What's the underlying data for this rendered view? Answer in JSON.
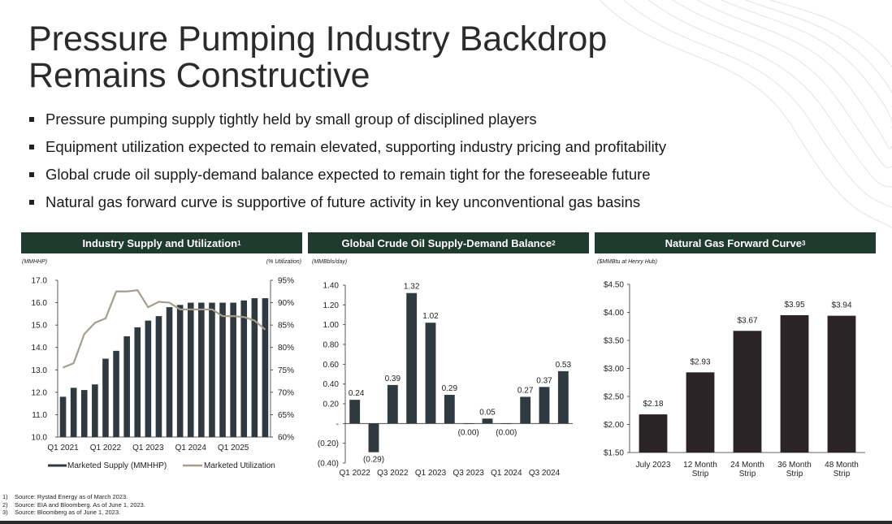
{
  "title": {
    "line1": "Pressure Pumping Industry Backdrop",
    "line2": "Remains Constructive"
  },
  "bullets": [
    "Pressure pumping supply tightly held by small group of disciplined players",
    "Equipment utilization expected to remain elevated, supporting industry pricing and profitability",
    "Global crude oil supply-demand balance expected to remain tight for the foreseeable future",
    "Natural gas forward curve is supportive of future activity in key unconventional gas basins"
  ],
  "panels": {
    "supply": {
      "title": "Industry Supply and Utilization",
      "sup": "1"
    },
    "oil": {
      "title": "Global Crude Oil Supply-Demand Balance",
      "sup": "2"
    },
    "gas": {
      "title": "Natural Gas Forward Curve",
      "sup": "3"
    }
  },
  "footnotes": [
    {
      "n": "1)",
      "text": "Source: Rystad Energy as of March 2023."
    },
    {
      "n": "2)",
      "text": "Source: EIA and Bloomberg.  As of June 1, 2023."
    },
    {
      "n": "3)",
      "text": "Source: Bloomberg as of June 1, 2023."
    }
  ],
  "colors": {
    "header_bg": "#1f3a2e",
    "bar_dark": "#2f3a40",
    "line_gray": "#a59d8e",
    "gas_bar": "#2b2326"
  },
  "chart_data": [
    {
      "type": "bar",
      "title": "Industry Supply and Utilization",
      "ylabel": "(MMHHP)",
      "y2label": "(% Utilization)",
      "ylim": [
        10.0,
        17.0
      ],
      "y2lim": [
        60,
        95
      ],
      "yticks": [
        "10.0",
        "11.0",
        "12.0",
        "13.0",
        "14.0",
        "15.0",
        "16.0",
        "17.0"
      ],
      "y2ticks": [
        "60%",
        "65%",
        "70%",
        "75%",
        "80%",
        "85%",
        "90%",
        "95%"
      ],
      "xticks": [
        "Q1 2021",
        "Q1 2022",
        "Q1 2023",
        "Q1 2024",
        "Q1 2025"
      ],
      "series": [
        {
          "name": "Marketed Supply (MMHHP)",
          "kind": "bar",
          "values": [
            11.8,
            12.2,
            12.1,
            12.35,
            13.5,
            13.85,
            14.5,
            14.9,
            15.2,
            15.4,
            15.8,
            15.9,
            16.0,
            16.0,
            16.0,
            16.0,
            16.0,
            16.1,
            16.2,
            16.2
          ]
        },
        {
          "name": "Marketed Utilization",
          "kind": "line",
          "values": [
            75.5,
            76.5,
            83,
            85.5,
            86.5,
            92.5,
            92.5,
            92.8,
            89,
            90.2,
            90,
            88.5,
            88.5,
            88.5,
            88.5,
            87,
            87,
            86.8,
            86,
            84
          ]
        }
      ]
    },
    {
      "type": "bar",
      "title": "Global Crude Oil Supply-Demand Balance",
      "ylabel": "(MMBbls/day)",
      "ylim": [
        -0.4,
        1.4
      ],
      "yticks": [
        "(0.40)",
        "(0.20)",
        "-",
        "0.20",
        "0.40",
        "0.60",
        "0.80",
        "1.00",
        "1.20",
        "1.40"
      ],
      "xticks": [
        "Q1 2022",
        "Q3 2022",
        "Q1 2023",
        "Q3 2023",
        "Q1 2024",
        "Q3 2024"
      ],
      "values": [
        0.24,
        -0.29,
        0.39,
        1.32,
        1.02,
        0.29,
        -0.005,
        0.05,
        -0.005,
        0.27,
        0.37,
        0.53
      ],
      "labels": [
        "0.24",
        "(0.29)",
        "0.39",
        "1.32",
        "1.02",
        "0.29",
        "(0.00)",
        "0.05",
        "(0.00)",
        "0.27",
        "0.37",
        "0.53"
      ]
    },
    {
      "type": "bar",
      "title": "Natural Gas Forward Curve",
      "ylabel": "($MMBtu at Henry Hub)",
      "ylim": [
        1.5,
        4.5
      ],
      "yticks": [
        "$1.50",
        "$2.00",
        "$2.50",
        "$3.00",
        "$3.50",
        "$4.00",
        "$4.50"
      ],
      "categories": [
        [
          "July 2023"
        ],
        [
          "12 Month",
          "Strip"
        ],
        [
          "24 Month",
          "Strip"
        ],
        [
          "36 Month",
          "Strip"
        ],
        [
          "48 Month",
          "Strip"
        ]
      ],
      "values": [
        2.18,
        2.93,
        3.67,
        3.95,
        3.94
      ],
      "labels": [
        "$2.18",
        "$2.93",
        "$3.67",
        "$3.95",
        "$3.94"
      ]
    }
  ]
}
